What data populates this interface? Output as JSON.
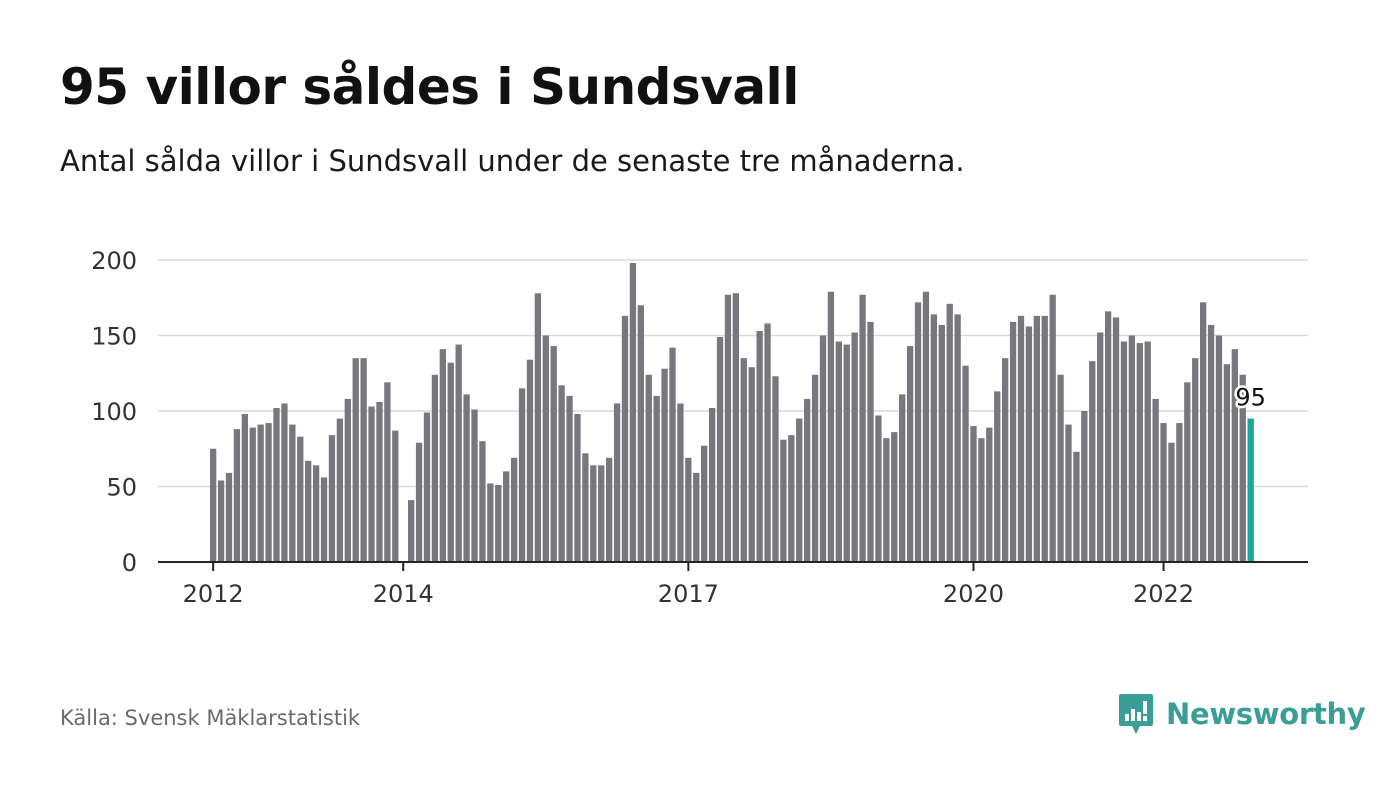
{
  "title": "95 villor såldes i Sundsvall",
  "subtitle": "Antal sålda villor i Sundsvall under de senaste tre månaderna.",
  "source": "Källa: Svensk Mäklarstatistik",
  "brand": {
    "name": "Newsworthy",
    "icon": "newsworthy-logo-icon",
    "color": "#3a9e97"
  },
  "colors": {
    "bar": "#78777d",
    "highlight": "#1aa79a",
    "grid": "#d9d9d9",
    "axis": "#222222"
  },
  "chart_data": {
    "type": "bar",
    "ylim": [
      0,
      200
    ],
    "yticks": [
      0,
      50,
      100,
      150,
      200
    ],
    "grid": true,
    "x_tick_labels": [
      {
        "label": "2012",
        "index": 0
      },
      {
        "label": "2014",
        "index": 24
      },
      {
        "label": "2017",
        "index": 60
      },
      {
        "label": "2020",
        "index": 96
      },
      {
        "label": "2022",
        "index": 120
      }
    ],
    "values": [
      75,
      54,
      59,
      88,
      98,
      89,
      91,
      92,
      102,
      105,
      91,
      83,
      67,
      64,
      56,
      84,
      95,
      108,
      135,
      135,
      103,
      106,
      119,
      87,
      0,
      41,
      79,
      99,
      124,
      141,
      132,
      144,
      111,
      101,
      80,
      52,
      51,
      60,
      69,
      115,
      134,
      178,
      150,
      143,
      117,
      110,
      98,
      72,
      64,
      64,
      69,
      105,
      163,
      198,
      170,
      124,
      110,
      128,
      142,
      105,
      69,
      59,
      77,
      102,
      149,
      177,
      178,
      135,
      129,
      153,
      158,
      123,
      81,
      84,
      95,
      108,
      124,
      150,
      179,
      146,
      144,
      152,
      177,
      159,
      97,
      82,
      86,
      111,
      143,
      172,
      179,
      164,
      157,
      171,
      164,
      130,
      90,
      82,
      89,
      113,
      135,
      159,
      163,
      156,
      163,
      163,
      177,
      124,
      91,
      73,
      100,
      133,
      152,
      166,
      162,
      146,
      150,
      145,
      146,
      108,
      92,
      79,
      92,
      119,
      135,
      172,
      157,
      150,
      131,
      141,
      124,
      95
    ],
    "highlight_index": 131,
    "highlight_label": "95"
  }
}
